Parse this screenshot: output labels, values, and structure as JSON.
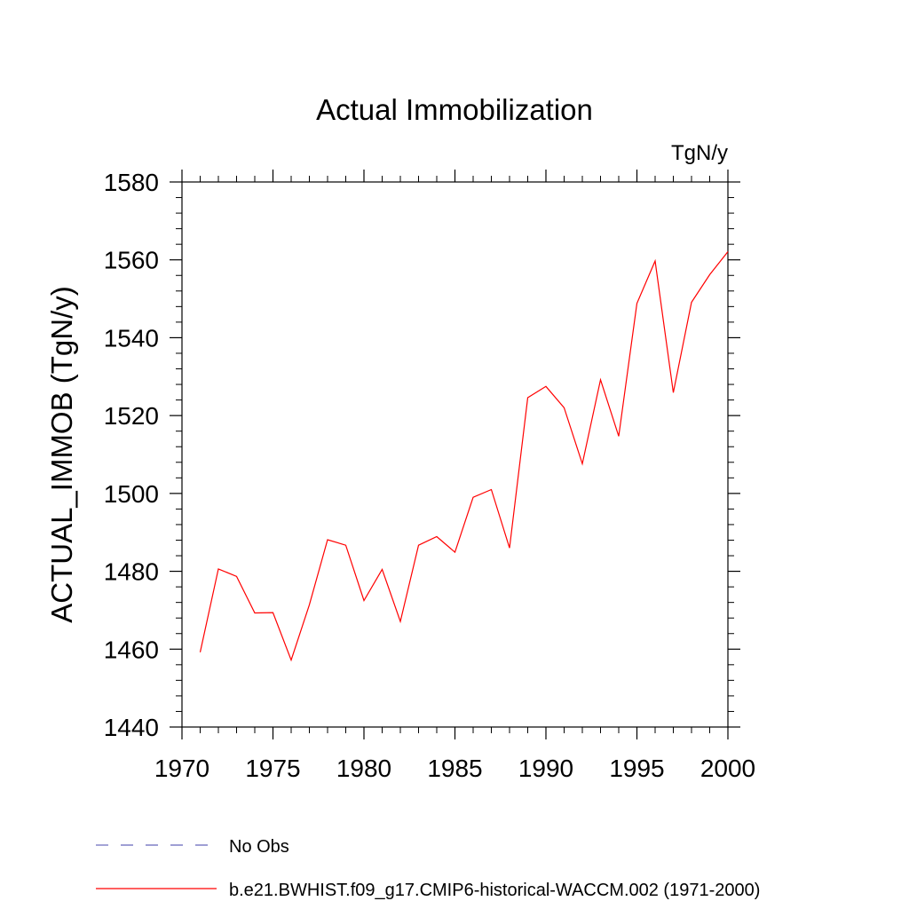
{
  "chart_data": {
    "type": "line",
    "title": "Actual Immobilization",
    "units_label": "TgN/y",
    "ylabel": "ACTUAL_IMMOB  (TgN/y)",
    "xlabel": "",
    "xlim": [
      1970,
      2000
    ],
    "ylim": [
      1440,
      1580
    ],
    "xticks": [
      1970,
      1975,
      1980,
      1985,
      1990,
      1995,
      2000
    ],
    "yticks": [
      1440,
      1460,
      1480,
      1500,
      1520,
      1540,
      1560,
      1580
    ],
    "grid": false,
    "legend_position": "bottom-left",
    "series": [
      {
        "name": "b.e21.BWHIST.f09_g17.CMIP6-historical-WACCM.002 (1971-2000)",
        "color": "#ff0000",
        "style": "solid",
        "x": [
          1971,
          1972,
          1973,
          1974,
          1975,
          1976,
          1977,
          1978,
          1979,
          1980,
          1981,
          1982,
          1983,
          1984,
          1985,
          1986,
          1987,
          1988,
          1989,
          1990,
          1991,
          1992,
          1993,
          1994,
          1995,
          1996,
          1997,
          1998,
          1999,
          2000
        ],
        "y": [
          1459.2,
          1480.6,
          1478.7,
          1469.3,
          1469.4,
          1457.2,
          1471.4,
          1488.1,
          1486.7,
          1472.5,
          1480.5,
          1467.1,
          1486.7,
          1488.9,
          1484.9,
          1499.0,
          1501.0,
          1486.0,
          1524.6,
          1527.5,
          1522.0,
          1507.6,
          1529.2,
          1514.7,
          1548.8,
          1559.7,
          1525.9,
          1549.1,
          1556.2,
          1562.1
        ]
      }
    ],
    "legend": [
      {
        "label": "No Obs",
        "color": "#6666bb",
        "style": "dashed"
      },
      {
        "label": "b.e21.BWHIST.f09_g17.CMIP6-historical-WACCM.002 (1971-2000)",
        "color": "#ff0000",
        "style": "solid"
      }
    ]
  }
}
